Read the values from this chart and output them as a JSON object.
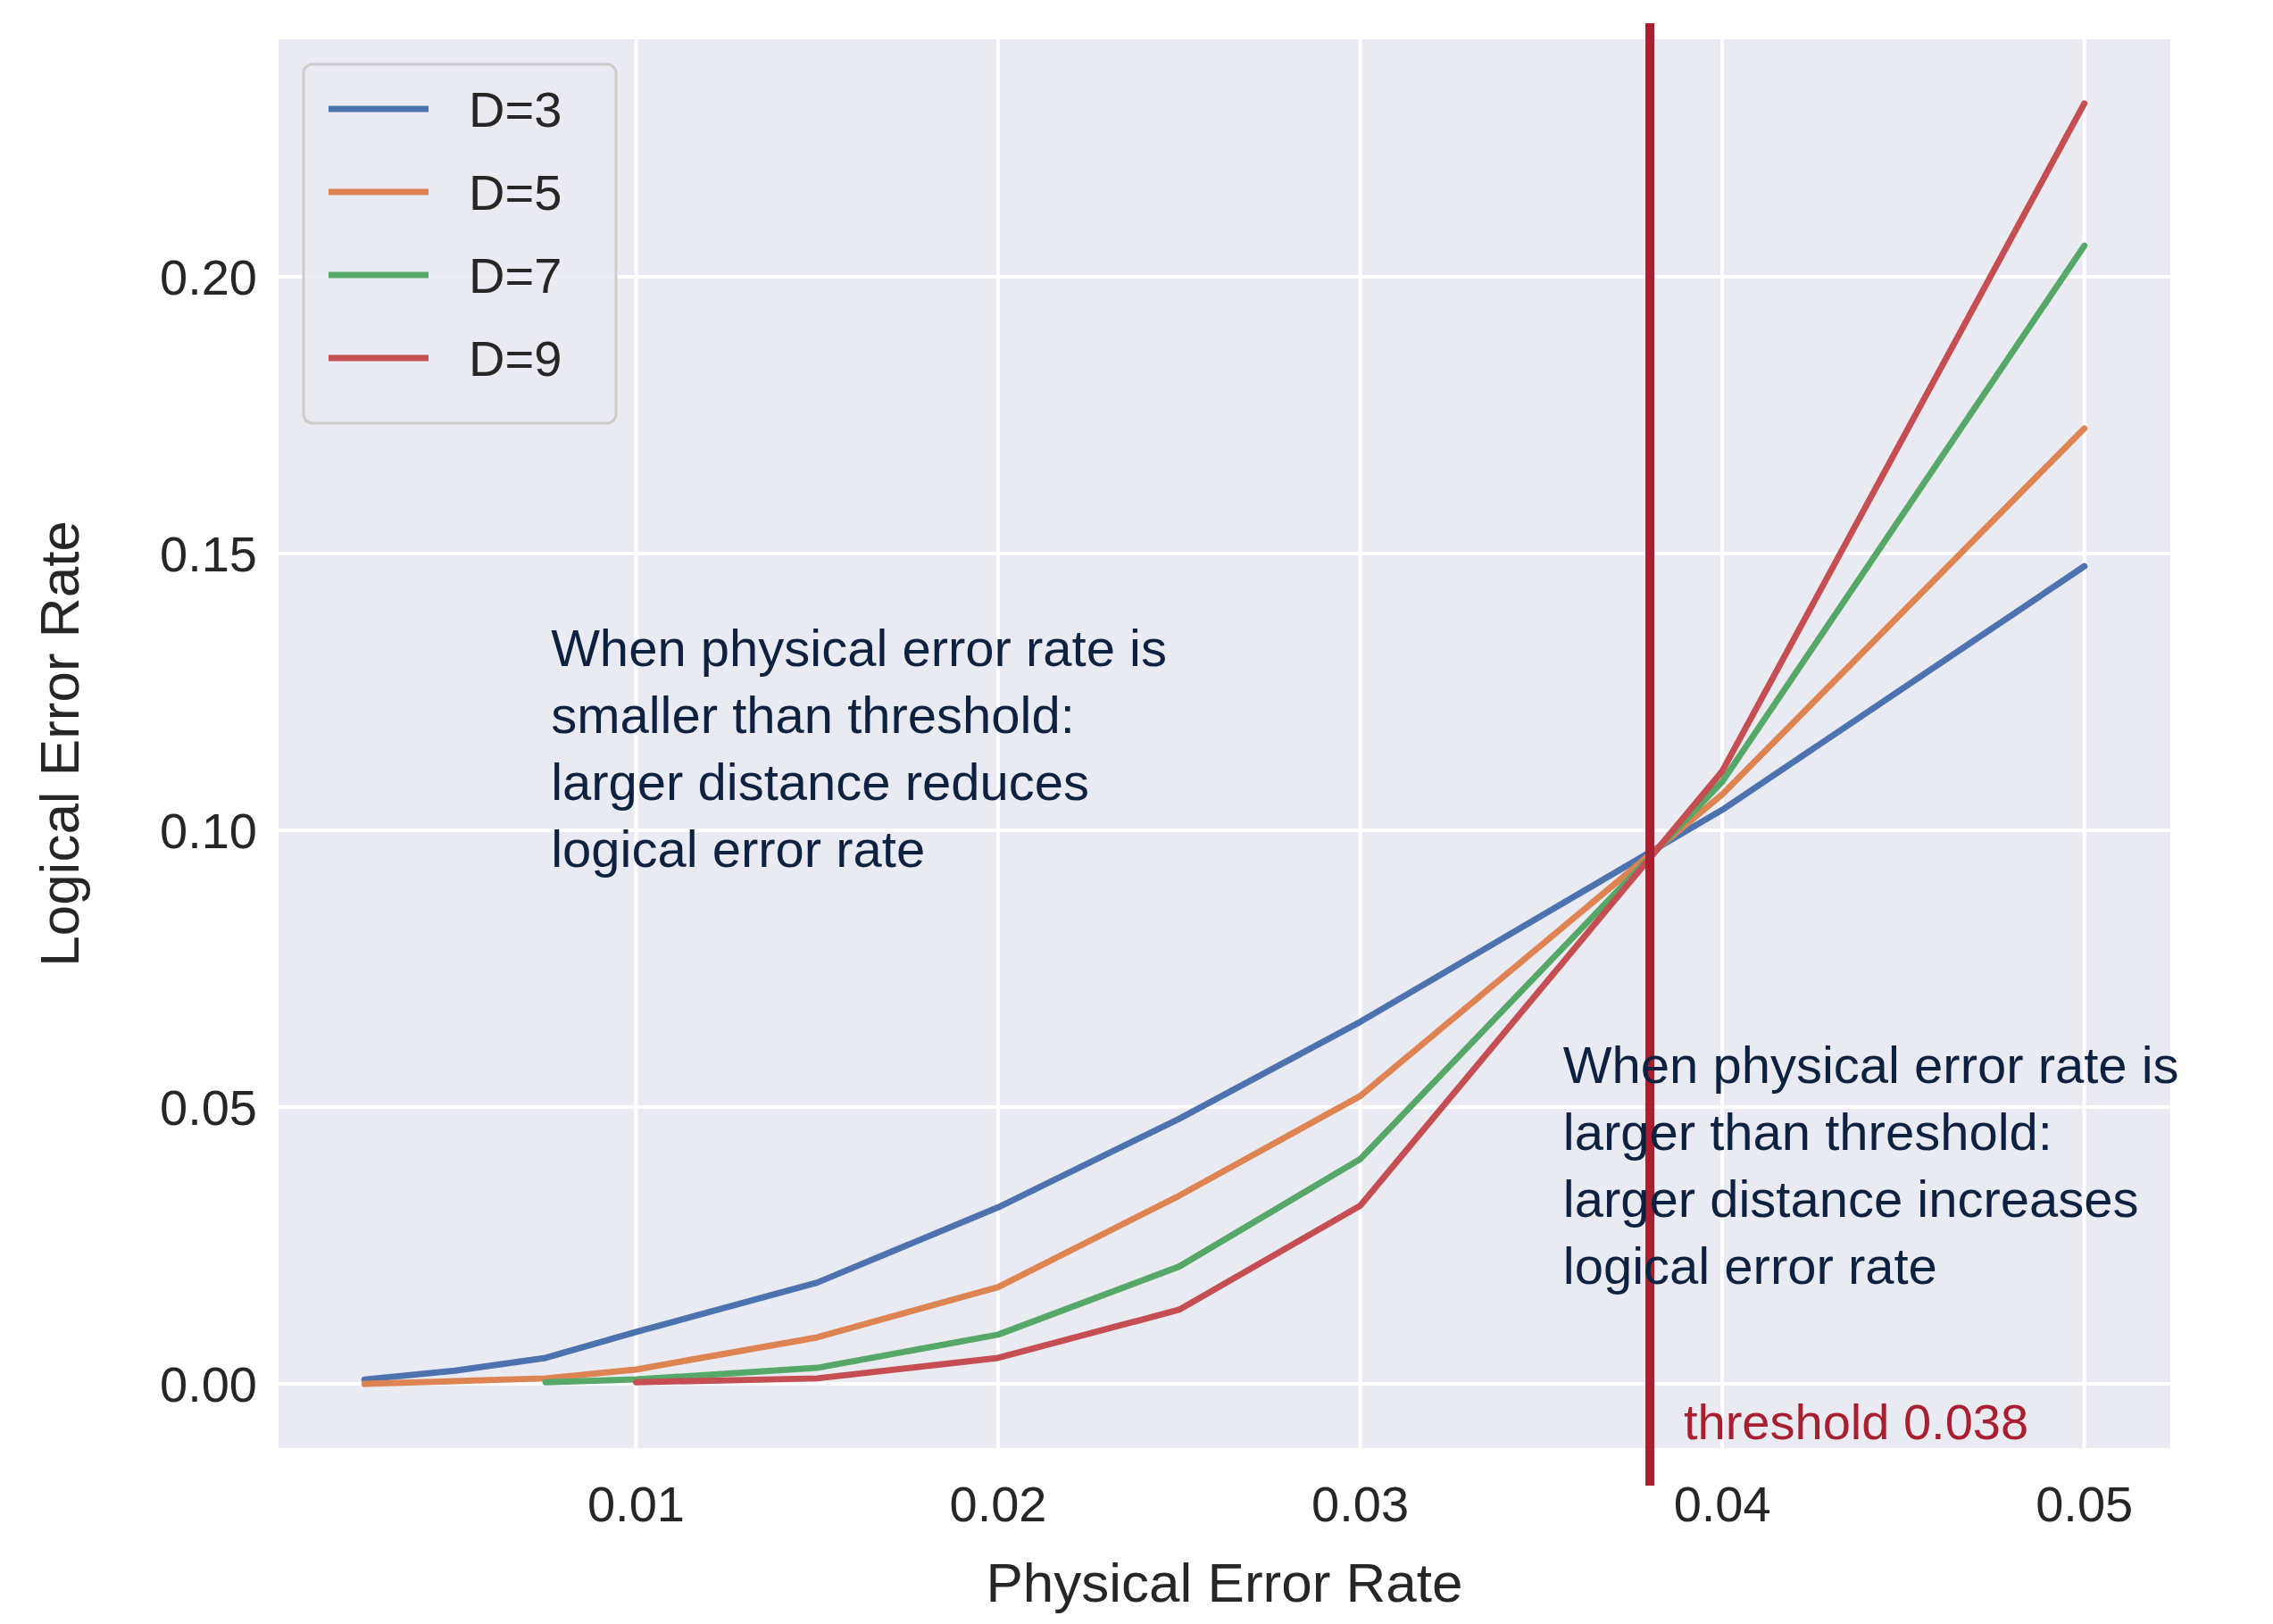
{
  "chart_data": {
    "type": "line",
    "xlabel": "Physical Error Rate",
    "ylabel": "Logical Error Rate",
    "xlim": [
      0.000125,
      0.052375
    ],
    "ylim": [
      -0.0116,
      0.2429
    ],
    "xticks": [
      0.01,
      0.02,
      0.03,
      0.04,
      0.05
    ],
    "yticks": [
      {
        "value": 0,
        "label": "0.00"
      },
      0.05,
      {
        "value": 0.1,
        "label": "0.10"
      },
      0.15,
      {
        "value": 0.2,
        "label": "0.20"
      }
    ],
    "grid": true,
    "legend": "top left",
    "line_style": "solid",
    "marker": "none",
    "series": [
      {
        "name": "D=3",
        "color": "#4c72b0",
        "x": [
          0.0025,
          0.005,
          0.0075,
          0.01,
          0.015,
          0.02,
          0.025,
          0.03,
          0.04,
          0.05
        ],
        "values": [
          0.0008,
          0.0024,
          0.0047,
          0.0094,
          0.0183,
          0.0319,
          0.0479,
          0.0654,
          0.1037,
          0.1477
        ]
      },
      {
        "name": "D=5",
        "color": "#dd8452",
        "x": [
          0.0025,
          0.0075,
          0.01,
          0.015,
          0.02,
          0.025,
          0.03,
          0.04,
          0.05
        ],
        "values": [
          0,
          0.001,
          0.0026,
          0.0084,
          0.0175,
          0.034,
          0.052,
          0.1065,
          0.1726
        ]
      },
      {
        "name": "D=7",
        "color": "#55a868",
        "x": [
          0.0075,
          0.01,
          0.015,
          0.02,
          0.025,
          0.03,
          0.04,
          0.05
        ],
        "values": [
          0.0003,
          0.0008,
          0.0029,
          0.0089,
          0.0212,
          0.0406,
          0.1088,
          0.2056
        ]
      },
      {
        "name": "D=9",
        "color": "#c44e52",
        "x": [
          0.01,
          0.015,
          0.02,
          0.025,
          0.03,
          0.04,
          0.05
        ],
        "values": [
          0.0003,
          0.001,
          0.0047,
          0.0134,
          0.0322,
          0.1107,
          0.2313
        ]
      }
    ],
    "ref_lines": [
      {
        "axis": "x",
        "value": 0.038,
        "label": "threshold 0.038",
        "color": "#a8202f"
      }
    ],
    "annotations": [
      "When physical error rate is\nsmaller than threshold:\nlarger distance reduces\nlogical error rate",
      "When physical error rate is\nlarger than threshold:\nlarger distance increases\nlogical error rate"
    ]
  }
}
